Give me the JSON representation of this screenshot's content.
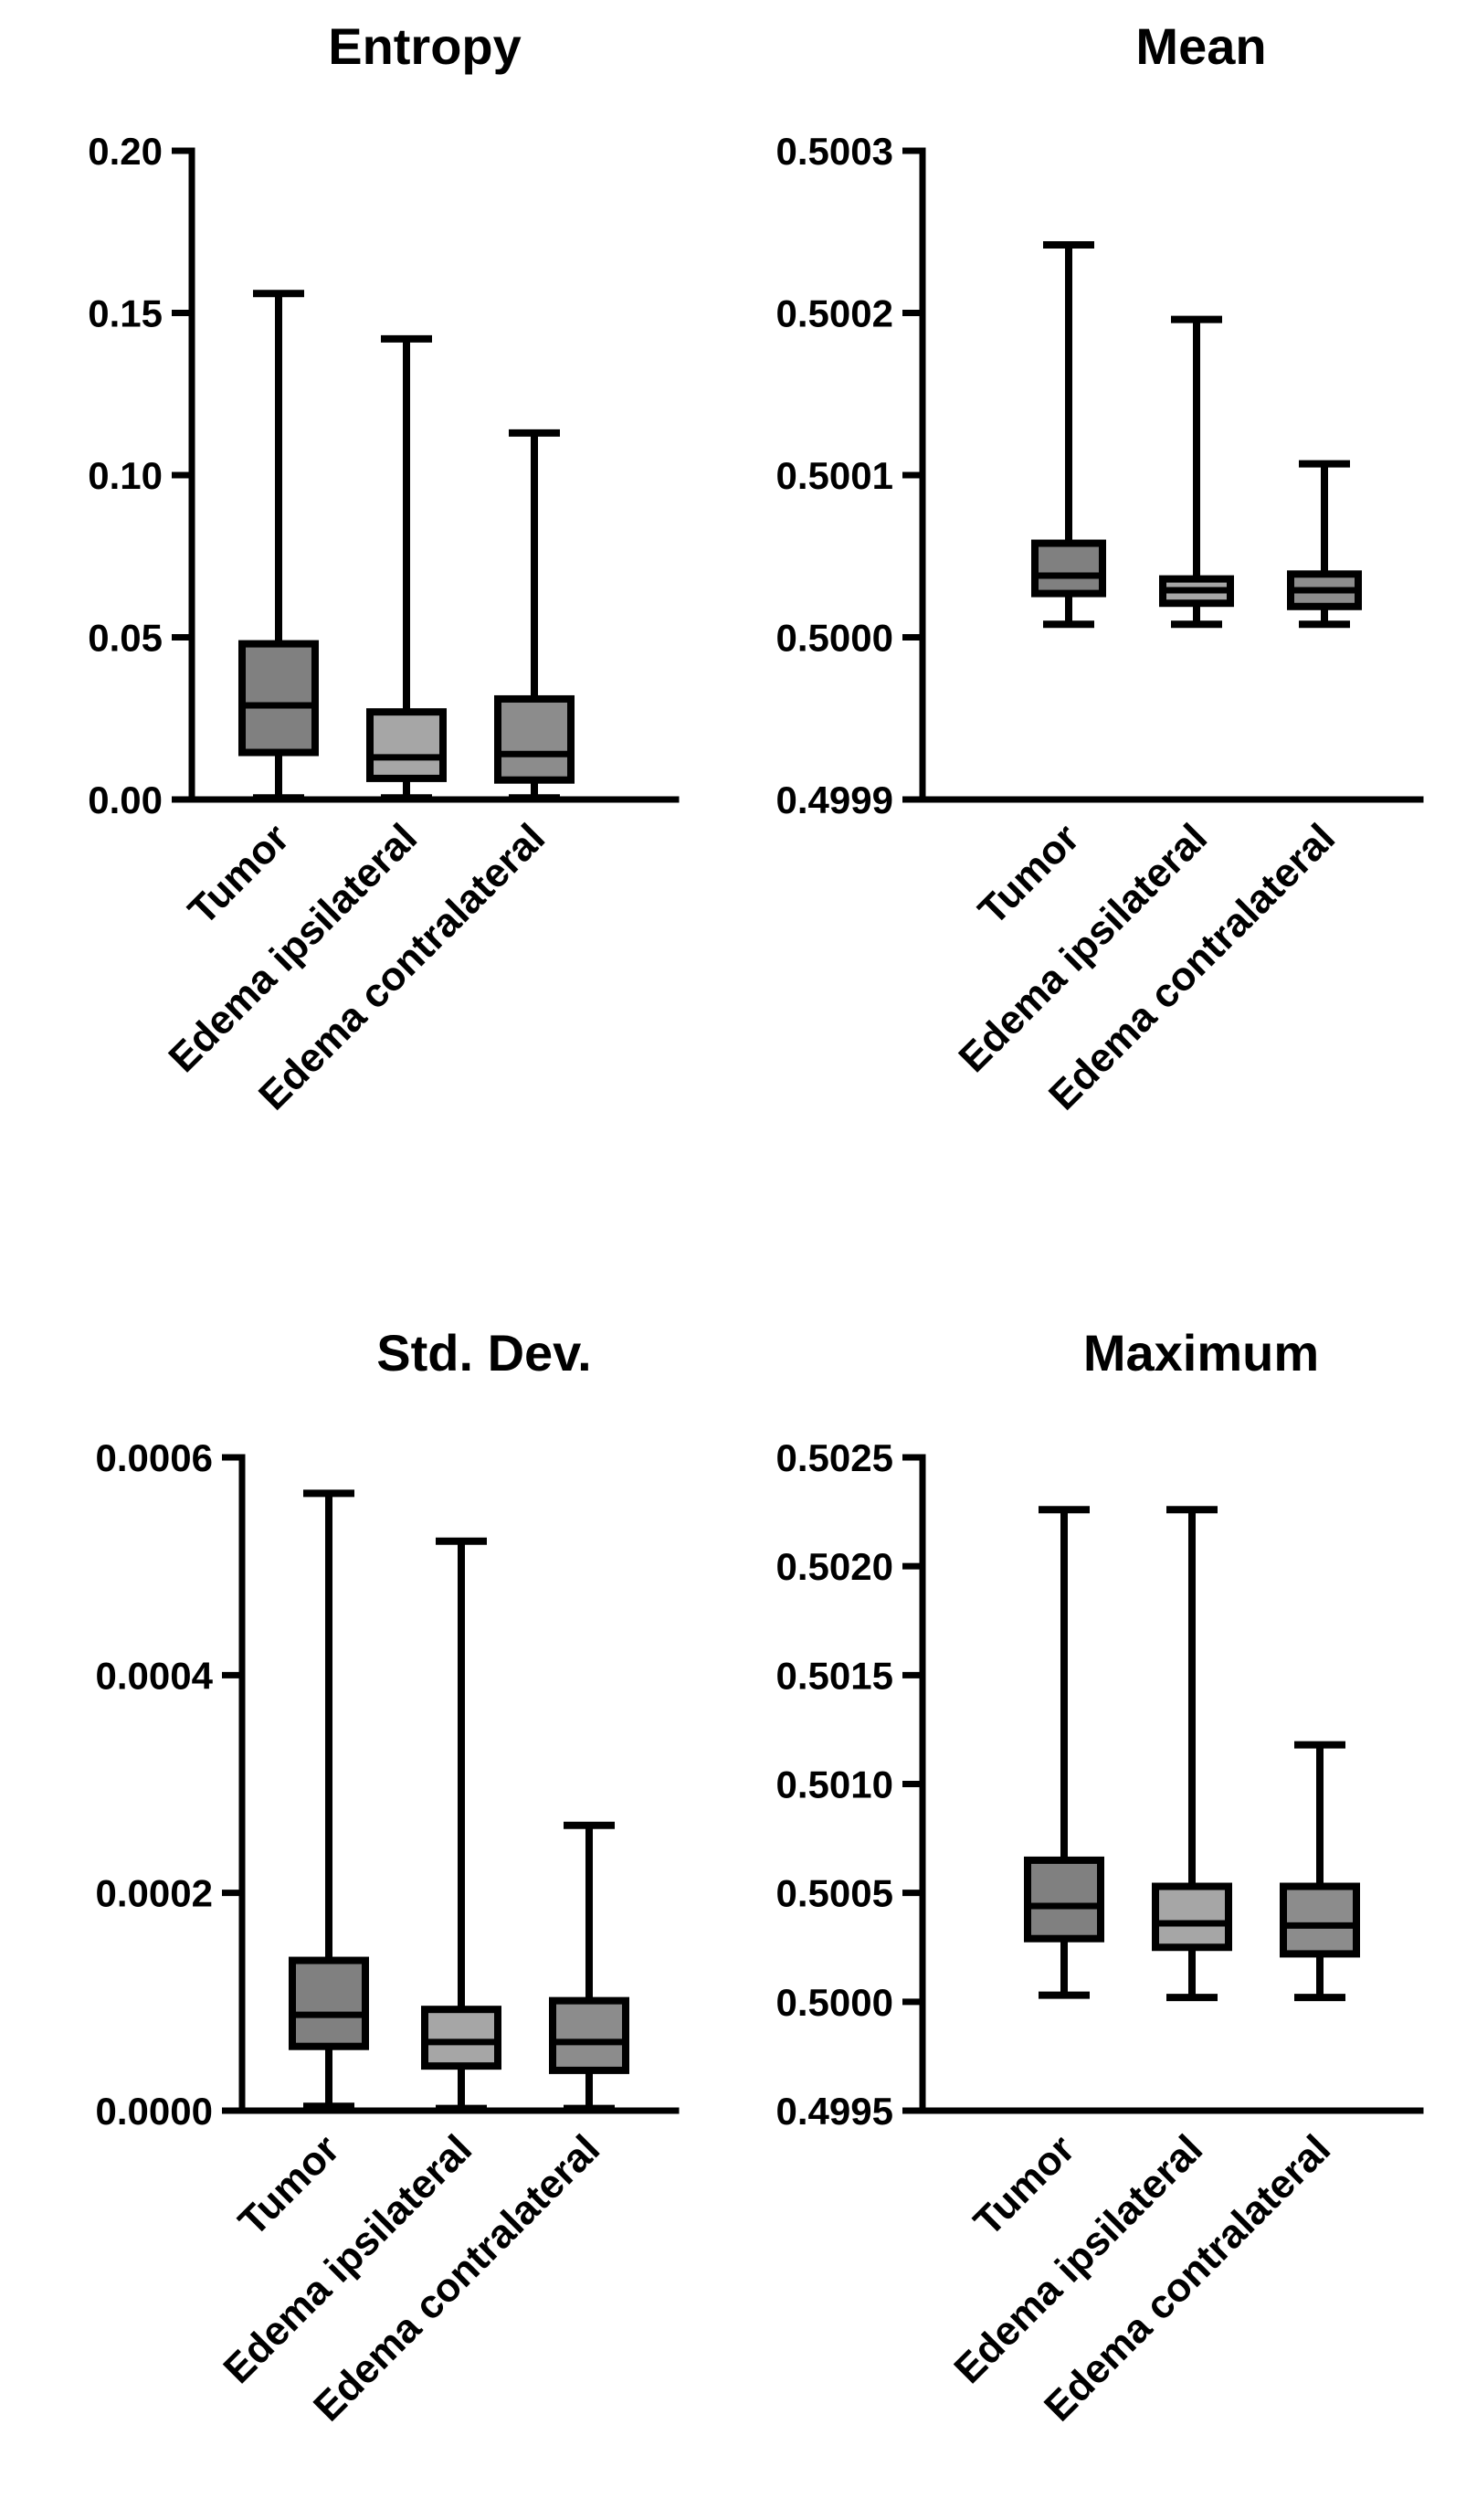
{
  "chart_data": [
    {
      "type": "box",
      "title": "Entropy",
      "categories": [
        "Tumor",
        "Edema ipsilateral",
        "Edema contralateral"
      ],
      "ylim": [
        0,
        0.2
      ],
      "yticks": [
        "0.00",
        "0.05",
        "0.10",
        "0.15",
        "0.20"
      ],
      "ytick_values": [
        0,
        0.05,
        0.1,
        0.15,
        0.2
      ],
      "boxes": [
        {
          "min": 0.0005,
          "q1": 0.0145,
          "median": 0.029,
          "q3": 0.048,
          "max": 0.156,
          "fill": "#808080"
        },
        {
          "min": 0.0005,
          "q1": 0.0065,
          "median": 0.013,
          "q3": 0.027,
          "max": 0.142,
          "fill": "#a6a6a6"
        },
        {
          "min": 0.0005,
          "q1": 0.006,
          "median": 0.014,
          "q3": 0.031,
          "max": 0.113,
          "fill": "#8c8c8c"
        }
      ]
    },
    {
      "type": "box",
      "title": "Mean",
      "categories": [
        "Tumor",
        "Edema ipsilateral",
        "Edema contralateral"
      ],
      "ylim": [
        0.4999,
        0.5003
      ],
      "yticks": [
        "0.4999",
        "0.5000",
        "0.5001",
        "0.5002",
        "0.5003"
      ],
      "ytick_values": [
        0.4999,
        0.5,
        0.5001,
        0.5002,
        0.5003
      ],
      "boxes": [
        {
          "min": 0.500008,
          "q1": 0.500027,
          "median": 0.500038,
          "q3": 0.500058,
          "max": 0.500242,
          "fill": "#808080"
        },
        {
          "min": 0.500008,
          "q1": 0.500021,
          "median": 0.500029,
          "q3": 0.500036,
          "max": 0.500196,
          "fill": "#a6a6a6"
        },
        {
          "min": 0.500008,
          "q1": 0.500019,
          "median": 0.500029,
          "q3": 0.500039,
          "max": 0.500107,
          "fill": "#8c8c8c"
        }
      ]
    },
    {
      "type": "box",
      "title": "Std. Dev.",
      "categories": [
        "Tumor",
        "Edema ipsilateral",
        "Edema contralateral"
      ],
      "ylim": [
        0,
        0.0006
      ],
      "yticks": [
        "0.0000",
        "0.0002",
        "0.0004",
        "0.0006"
      ],
      "ytick_values": [
        0,
        0.0002,
        0.0004,
        0.0006
      ],
      "boxes": [
        {
          "min": 4e-06,
          "q1": 5.9e-05,
          "median": 8.8e-05,
          "q3": 0.000138,
          "max": 0.000567,
          "fill": "#808080"
        },
        {
          "min": 2e-06,
          "q1": 4.1e-05,
          "median": 6.3e-05,
          "q3": 9.3e-05,
          "max": 0.000523,
          "fill": "#a6a6a6"
        },
        {
          "min": 2e-06,
          "q1": 3.7e-05,
          "median": 6.3e-05,
          "q3": 0.000101,
          "max": 0.000262,
          "fill": "#8c8c8c"
        }
      ]
    },
    {
      "type": "box",
      "title": "Maximum",
      "categories": [
        "Tumor",
        "Edema ipsilateral",
        "Edema contralateral"
      ],
      "ylim": [
        0.4995,
        0.5025
      ],
      "yticks": [
        "0.4995",
        "0.5000",
        "0.5005",
        "0.5010",
        "0.5015",
        "0.5020",
        "0.5025"
      ],
      "ytick_values": [
        0.4995,
        0.5,
        0.5005,
        0.501,
        0.5015,
        0.502,
        0.5025
      ],
      "boxes": [
        {
          "min": 0.50003,
          "q1": 0.50029,
          "median": 0.50044,
          "q3": 0.50065,
          "max": 0.50226,
          "fill": "#808080"
        },
        {
          "min": 0.50002,
          "q1": 0.50025,
          "median": 0.50036,
          "q3": 0.50053,
          "max": 0.50226,
          "fill": "#a6a6a6"
        },
        {
          "min": 0.50002,
          "q1": 0.50022,
          "median": 0.50035,
          "q3": 0.50053,
          "max": 0.50118,
          "fill": "#8c8c8c"
        }
      ]
    }
  ]
}
